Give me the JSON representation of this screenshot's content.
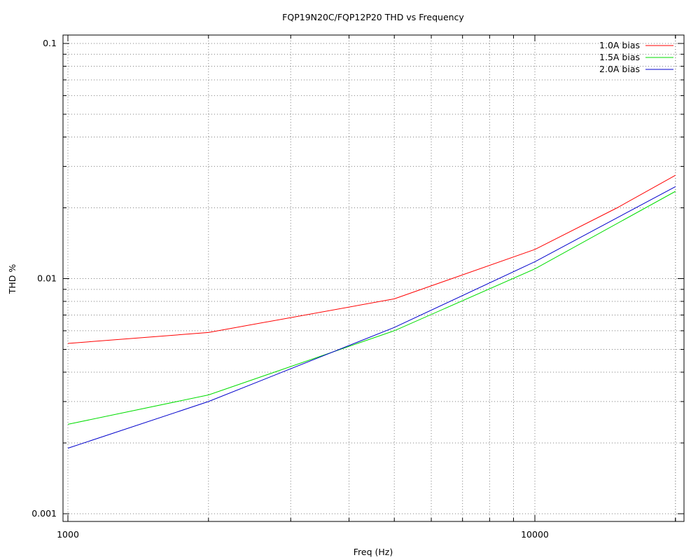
{
  "chart_data": {
    "type": "line",
    "title": "FQP19N20C/FQP12P20 THD vs Frequency",
    "xlabel": "Freq (Hz)",
    "ylabel": "THD %",
    "xscale": "log",
    "yscale": "log",
    "xlim": [
      1000,
      20000
    ],
    "ylim": [
      0.001,
      0.1
    ],
    "x_tick_labels": [
      {
        "value": 1000,
        "label": "1000"
      },
      {
        "value": 10000,
        "label": "10000"
      }
    ],
    "y_tick_labels": [
      {
        "value": 0.001,
        "label": "0.001"
      },
      {
        "value": 0.01,
        "label": "0.01"
      },
      {
        "value": 0.1,
        "label": "0.1"
      }
    ],
    "grid": true,
    "legend_position": "top-right",
    "series": [
      {
        "name": "1.0A bias",
        "color": "#ff0000",
        "x": [
          1000,
          2000,
          5000,
          10000,
          15000,
          20000
        ],
        "y": [
          0.0053,
          0.0059,
          0.0082,
          0.0133,
          0.02,
          0.0275
        ]
      },
      {
        "name": "1.5A bias",
        "color": "#00dd00",
        "x": [
          1000,
          2000,
          5000,
          10000,
          20000
        ],
        "y": [
          0.0024,
          0.0032,
          0.006,
          0.011,
          0.0235
        ]
      },
      {
        "name": "2.0A bias",
        "color": "#0000cc",
        "x": [
          1000,
          2000,
          5000,
          10000,
          20000
        ],
        "y": [
          0.0019,
          0.003,
          0.0062,
          0.0118,
          0.0246
        ]
      }
    ]
  }
}
